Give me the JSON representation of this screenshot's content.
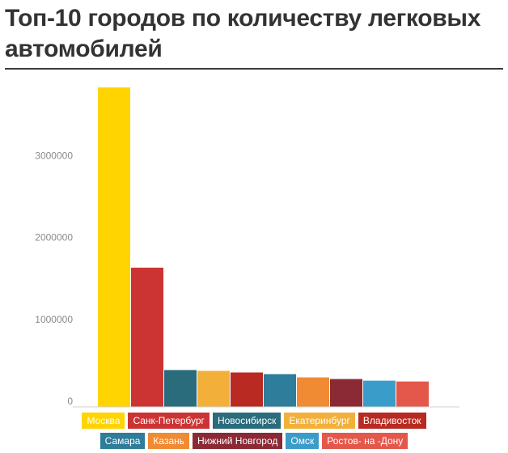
{
  "chart_data": {
    "type": "bar",
    "title": "Топ-10 городов по количеству легковых автомобилей",
    "xlabel": "",
    "ylabel": "",
    "ylim": [
      0,
      4000000
    ],
    "yticks": [
      "0",
      "1000000",
      "2000000",
      "3000000"
    ],
    "yticks_values": [
      0,
      1000000,
      2000000,
      3000000
    ],
    "grid": false,
    "legend_placement": "bottom",
    "categories": [
      "Москва",
      "Санк-Петербург",
      "Новосибирск",
      "Екатеринбург",
      "Владивосток",
      "Самара",
      "Казань",
      "Нижний Новгород",
      "Омск",
      "Ростов- на -Дону"
    ],
    "values": [
      3900000,
      1700000,
      450000,
      440000,
      420000,
      400000,
      360000,
      340000,
      320000,
      310000
    ],
    "colors": [
      "#FFD400",
      "#CC3333",
      "#2A6B7C",
      "#F2B03A",
      "#B82A22",
      "#2E7D9A",
      "#F08A33",
      "#8B2A35",
      "#3A9CC8",
      "#E4574B"
    ]
  },
  "legend": {
    "rows": [
      [
        0,
        1,
        2,
        3,
        4
      ],
      [
        5,
        6,
        7,
        8,
        9
      ]
    ]
  }
}
